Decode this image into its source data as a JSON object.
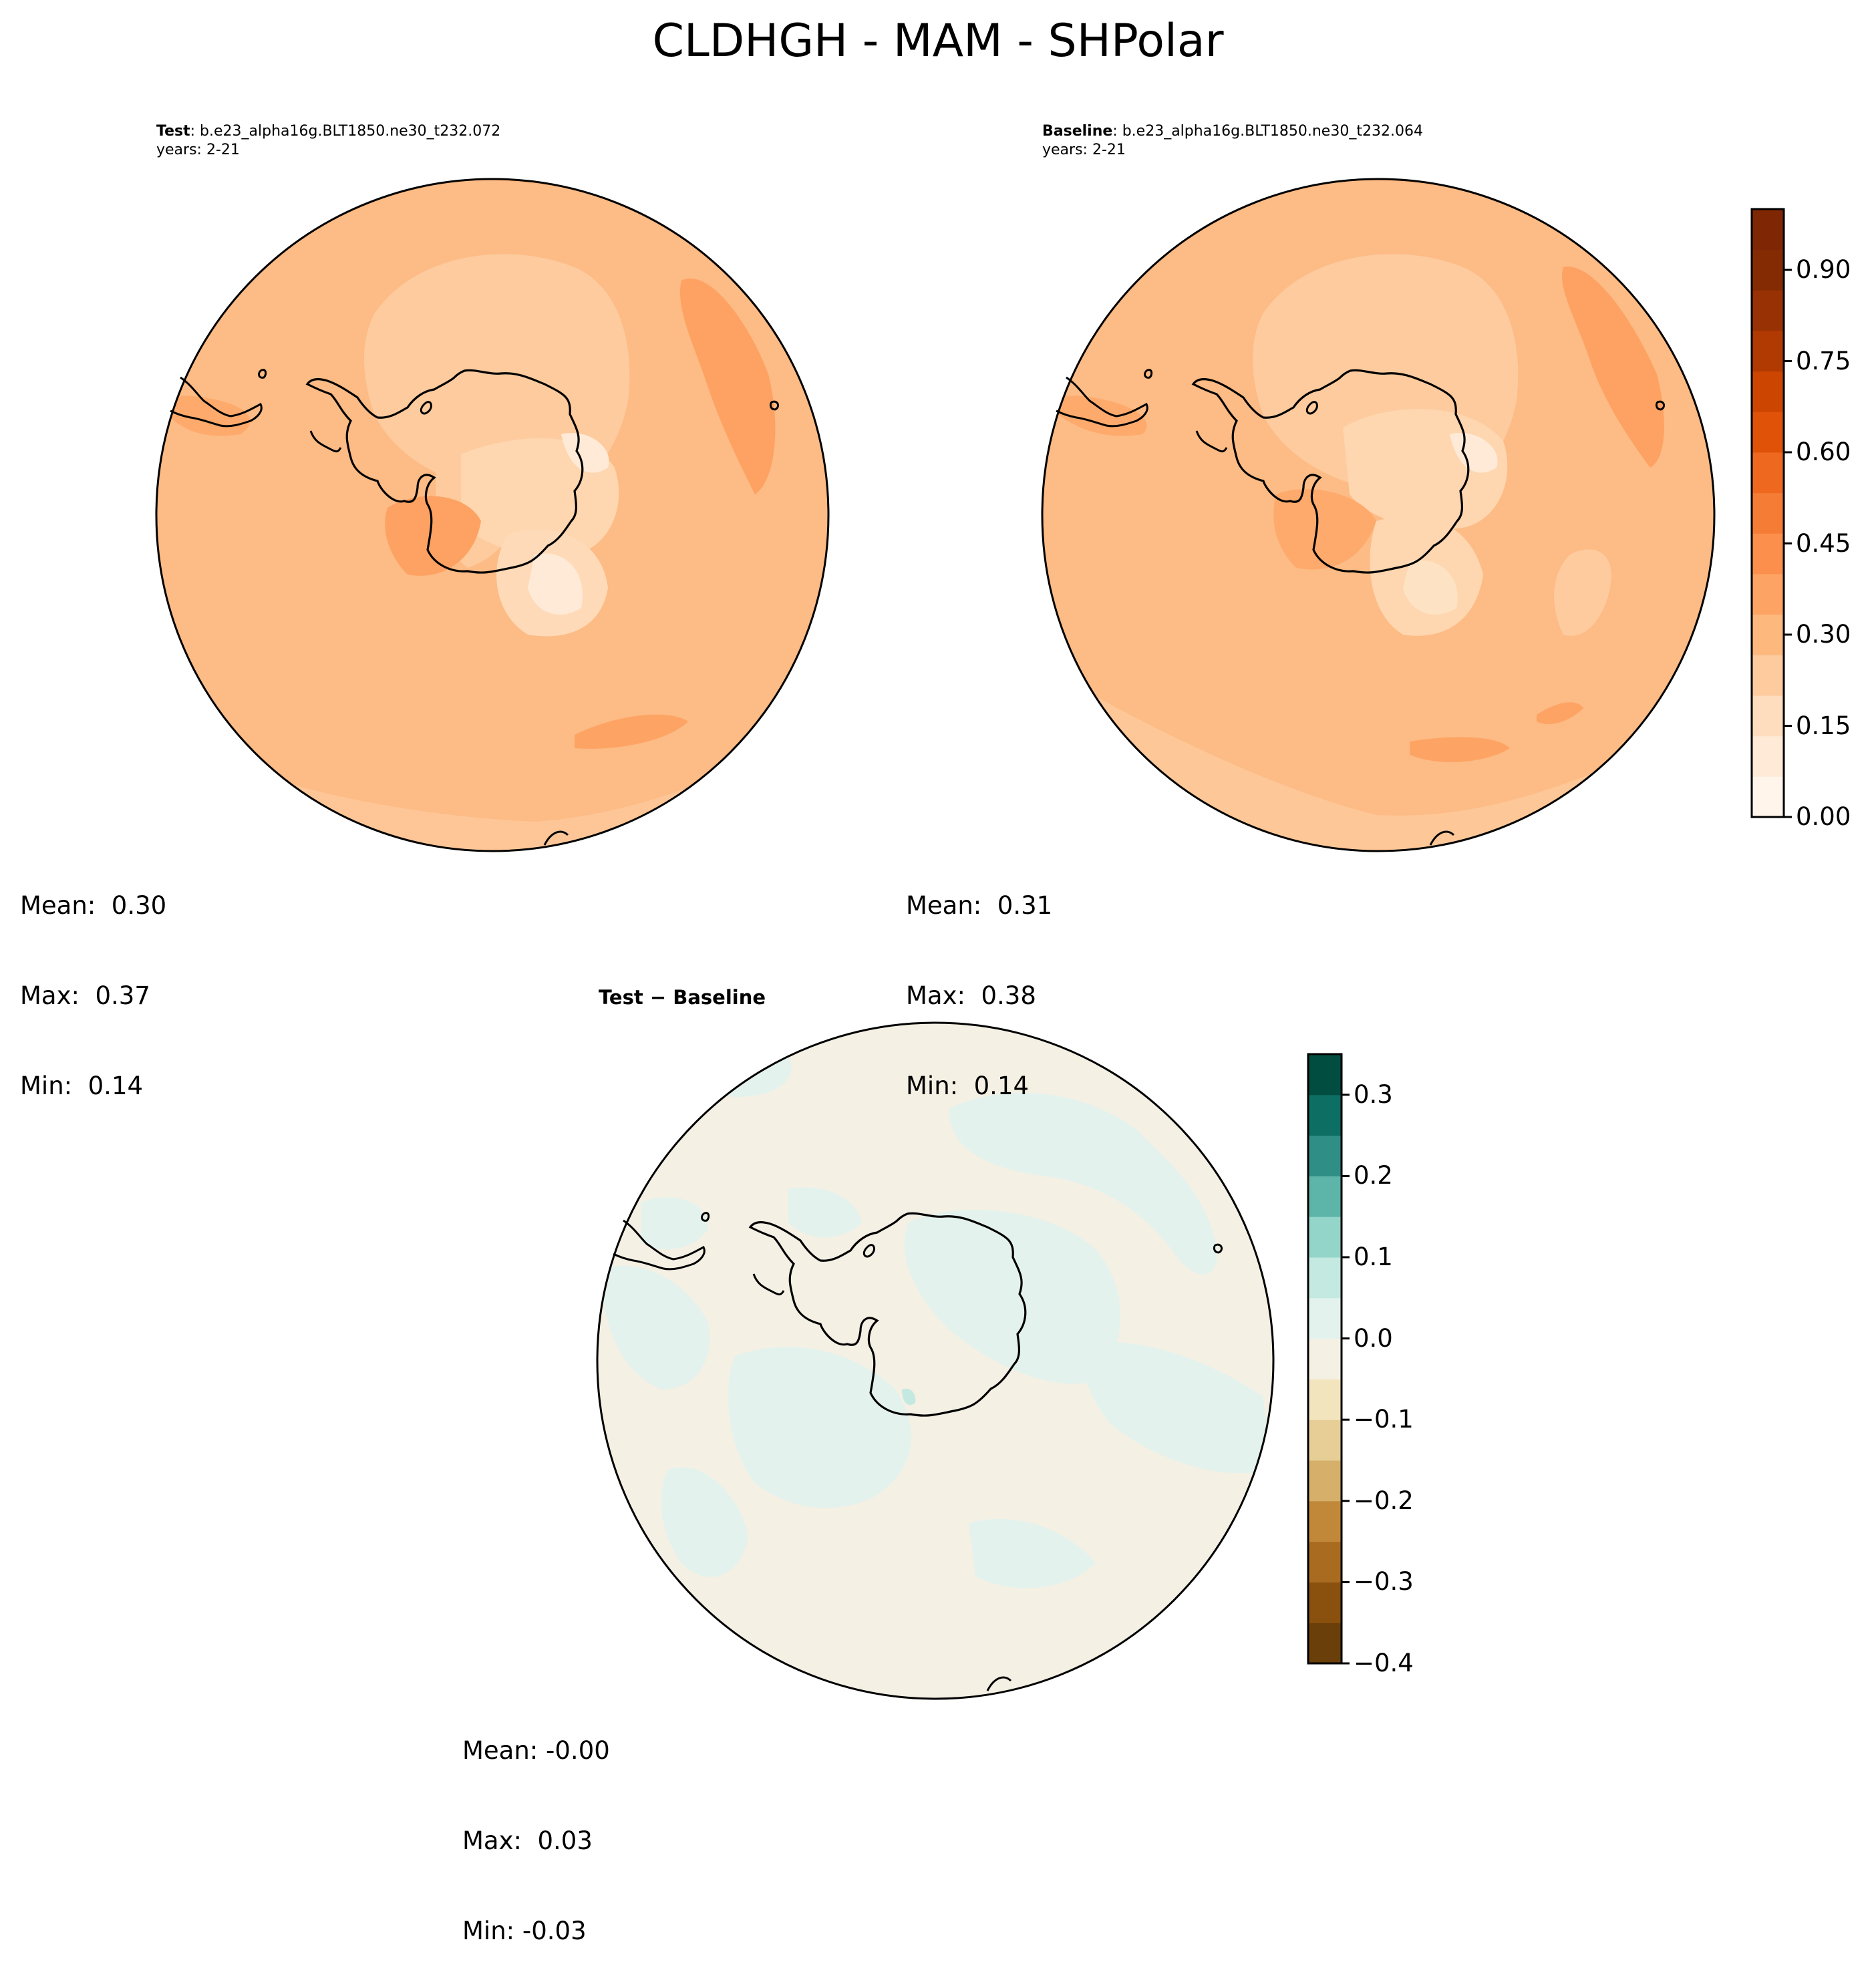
{
  "figure": {
    "title": "CLDHGH - MAM - SHPolar"
  },
  "panels": {
    "test": {
      "label": "Test",
      "case": ": b.e23_alpha16g.BLT1850.ne30_t232.072",
      "years": "years: 2-21",
      "stats": {
        "mean": "Mean:  0.30",
        "max": "Max:  0.37",
        "min": "Min:  0.14"
      }
    },
    "baseline": {
      "label": "Baseline",
      "case": ": b.e23_alpha16g.BLT1850.ne30_t232.064",
      "years": "years: 2-21",
      "stats": {
        "mean": "Mean:  0.31",
        "max": "Max:  0.38",
        "min": "Min:  0.14"
      }
    },
    "diff": {
      "title": "Test − Baseline",
      "stats": {
        "mean": "Mean: -0.00",
        "max": "Max:  0.03",
        "min": "Min: -0.03"
      }
    }
  },
  "colorbars": {
    "main": {
      "ticks": [
        "0.00",
        "0.15",
        "0.30",
        "0.45",
        "0.60",
        "0.75",
        "0.90"
      ],
      "colors": [
        "#fff5eb",
        "#feead6",
        "#fdddbe",
        "#fdcb9e",
        "#fdb87e",
        "#fda464",
        "#fd8f4c",
        "#f57c34",
        "#ee6820",
        "#df5207",
        "#cc4602",
        "#b13a03",
        "#983103",
        "#852b04",
        "#7f2704"
      ]
    },
    "diff": {
      "ticks": [
        "0.3",
        "0.2",
        "0.1",
        "0.0",
        "−0.1",
        "−0.2",
        "−0.3",
        "−0.4"
      ],
      "colors": [
        "#6a3f0a",
        "#8a500e",
        "#a86b20",
        "#c08838",
        "#d6b06a",
        "#e6ce96",
        "#f2e4bd",
        "#f4f0e4",
        "#e4f2ee",
        "#c3e9e1",
        "#93d5c8",
        "#5db4a9",
        "#2f8e86",
        "#0d6e64",
        "#014d40"
      ]
    }
  },
  "chart_data": [
    {
      "type": "heatmap",
      "title": "Test",
      "subtitle": "b.e23_alpha16g.BLT1850.ne30_t232.072 years: 2-21",
      "variable": "CLDHGH",
      "season": "MAM",
      "region": "SHPolar",
      "stats": {
        "mean": 0.3,
        "max": 0.37,
        "min": 0.14
      },
      "colormap": "Oranges",
      "levels": [
        0,
        0.066,
        0.133,
        0.2,
        0.266,
        0.333,
        0.4,
        0.466,
        0.533,
        0.6,
        0.666,
        0.733,
        0.8,
        0.866,
        0.933,
        1.0
      ]
    },
    {
      "type": "heatmap",
      "title": "Baseline",
      "subtitle": "b.e23_alpha16g.BLT1850.ne30_t232.064 years: 2-21",
      "variable": "CLDHGH",
      "season": "MAM",
      "region": "SHPolar",
      "stats": {
        "mean": 0.31,
        "max": 0.38,
        "min": 0.14
      },
      "colormap": "Oranges",
      "levels": [
        0,
        0.066,
        0.133,
        0.2,
        0.266,
        0.333,
        0.4,
        0.466,
        0.533,
        0.6,
        0.666,
        0.733,
        0.8,
        0.866,
        0.933,
        1.0
      ]
    },
    {
      "type": "heatmap",
      "title": "Test − Baseline",
      "stats": {
        "mean": -0.0,
        "max": 0.03,
        "min": -0.03
      },
      "colormap": "BrBG",
      "levels": [
        -0.4,
        -0.35,
        -0.3,
        -0.25,
        -0.2,
        -0.15,
        -0.1,
        -0.05,
        0.0,
        0.05,
        0.1,
        0.15,
        0.2,
        0.25,
        0.3,
        0.35
      ]
    }
  ]
}
